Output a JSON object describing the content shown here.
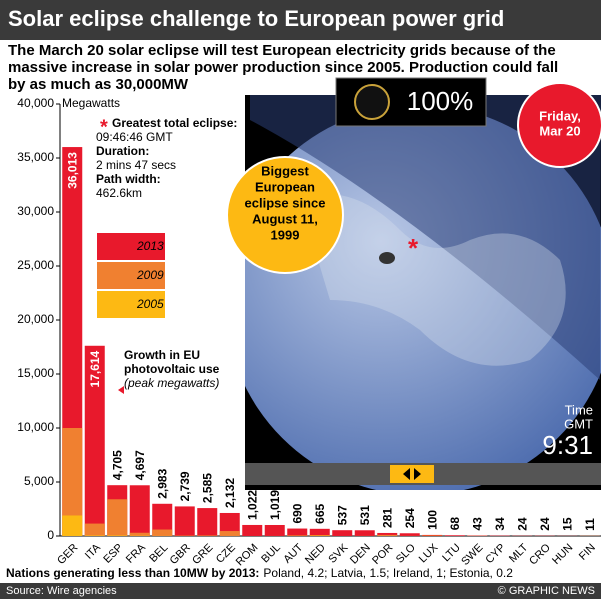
{
  "chart_data": {
    "type": "bar",
    "title": "Solar eclipse challenge to European power grid",
    "subtitle": [
      "The March 20 solar eclipse will test European electricity grids because of the",
      "massive increase in solar power production since 2005. Production could fall",
      "by as much as 30,000MW"
    ],
    "y_label": "Megawatts",
    "categories": [
      "GER",
      "ITA",
      "ESP",
      "FRA",
      "BEL",
      "GBR",
      "GRE",
      "CZE",
      "ROM",
      "BUL",
      "AUT",
      "NED",
      "SVK",
      "DEN",
      "POR",
      "SLO",
      "LUX",
      "LTU",
      "SWE",
      "CYP",
      "MLT",
      "CRO",
      "HUN",
      "FIN"
    ],
    "series": [
      {
        "name": "2013",
        "color": "#e8192c",
        "values": [
          36013,
          17614,
          4705,
          4697,
          2983,
          2739,
          2585,
          2132,
          1022,
          1019,
          690,
          665,
          537,
          531,
          281,
          254,
          100,
          68,
          43,
          34,
          24,
          24,
          15,
          11
        ],
        "value_labels": [
          "36,013",
          "17,614",
          "4,705",
          "4,697",
          "2,983",
          "2,739",
          "2,585",
          "2,132",
          "1,022",
          "1,019",
          "690",
          "665",
          "537",
          "531",
          "281",
          "254",
          "100",
          "68",
          "43",
          "34",
          "24",
          "24",
          "15",
          "11"
        ]
      },
      {
        "name": "2009",
        "color": "#f08030",
        "values": [
          10000,
          1150,
          3400,
          300,
          600,
          30,
          50,
          460,
          0,
          5,
          50,
          70,
          0,
          5,
          100,
          10,
          25,
          0,
          10,
          0,
          0,
          0,
          0,
          8
        ]
      },
      {
        "name": "2005",
        "color": "#fdb913",
        "values": [
          1900,
          50,
          50,
          30,
          10,
          10,
          5,
          0,
          0,
          0,
          20,
          50,
          0,
          3,
          3,
          0,
          25,
          0,
          3,
          0,
          0,
          0,
          0,
          5
        ]
      }
    ],
    "ylim": [
      0,
      40000
    ],
    "yticks": [
      0,
      {
        "value": 5000,
        "label": "5,000"
      },
      {
        "value": 10000,
        "label": "10,000"
      },
      {
        "value": 15000,
        "label": "15,000"
      },
      {
        "value": 20000,
        "label": "20,000"
      },
      {
        "value": 25000,
        "label": "25,000"
      },
      {
        "value": 30000,
        "label": "30,000"
      },
      {
        "value": 35000,
        "label": "35,000"
      },
      {
        "value": 40000,
        "label": "40,000"
      }
    ],
    "grid": false,
    "legend_title": [
      "Growth in EU",
      "photovoltaic use"
    ],
    "legend_subtitle": "(peak megawatts)",
    "eclipse_info": [
      [
        "Greatest total eclipse:",
        "09:46:46 GMT"
      ],
      [
        "Duration:",
        "2 mins 47 secs"
      ],
      [
        "Path width:",
        "462.6km"
      ]
    ],
    "coverage": "100%",
    "date": [
      "Friday,",
      "Mar 20"
    ],
    "badge": [
      "Biggest",
      "European",
      "eclipse since",
      "August 11,",
      "1999"
    ],
    "time_label": [
      "Time",
      "GMT"
    ],
    "time": "9:31",
    "footnote_bold": "Nations generating less than 10MW by 2013:",
    "footnote": "Poland, 4.2; Latvia, 1.5; Ireland, 1; Estonia, 0.2",
    "source": "Source: Wire agencies",
    "credit": "© GRAPHIC NEWS"
  }
}
